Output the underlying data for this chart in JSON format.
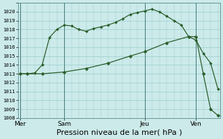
{
  "background_color": "#cceaea",
  "grid_color": "#99cccc",
  "line_color": "#2a5e2a",
  "ylim": [
    1008,
    1021
  ],
  "yticks": [
    1008,
    1009,
    1010,
    1011,
    1012,
    1013,
    1014,
    1015,
    1016,
    1017,
    1018,
    1019,
    1020
  ],
  "xlabel": "Pression niveau de la mer( hPa )",
  "xlabel_fontsize": 8,
  "xtick_labels": [
    "Mer",
    "Sam",
    "Jeu",
    "Ven"
  ],
  "xtick_positions": [
    0,
    6,
    17,
    24
  ],
  "vline_positions": [
    0,
    6,
    17,
    24
  ],
  "n_total": 28,
  "line1_x": [
    0,
    1,
    2,
    3,
    4,
    5,
    6,
    7,
    8,
    9,
    10,
    11,
    12,
    13,
    14,
    15,
    16,
    17,
    18,
    19,
    20,
    21,
    22,
    23,
    24,
    25,
    26,
    27
  ],
  "line1_y": [
    1013.0,
    1013.0,
    1013.1,
    1014.0,
    1017.1,
    1018.0,
    1018.5,
    1018.4,
    1018.0,
    1017.8,
    1018.1,
    1018.3,
    1018.5,
    1018.8,
    1019.2,
    1019.7,
    1019.9,
    1020.1,
    1020.3,
    1020.0,
    1019.5,
    1019.0,
    1018.5,
    1017.2,
    1016.8,
    1015.3,
    1014.2,
    1011.3
  ],
  "line2_x": [
    0,
    1,
    3,
    6,
    9,
    12,
    15,
    17,
    20,
    23,
    24,
    25,
    26,
    27
  ],
  "line2_y": [
    1013.0,
    1013.0,
    1013.0,
    1013.2,
    1013.6,
    1014.2,
    1015.0,
    1015.5,
    1016.5,
    1017.2,
    1017.2,
    1013.0,
    1009.0,
    1008.3
  ]
}
